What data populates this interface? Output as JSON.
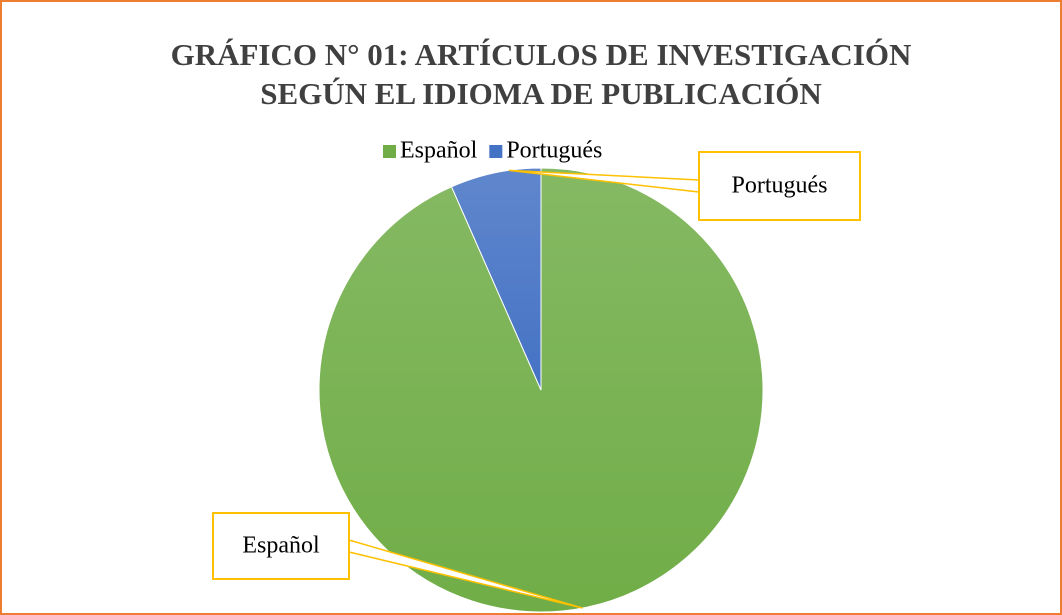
{
  "chart_data": {
    "type": "pie",
    "title": [
      "GRÁFICO N° 01: ARTÍCULOS DE INVESTIGACIÓN",
      "SEGÚN EL IDIOMA DE PUBLICACIÓN"
    ],
    "categories": [
      "Español",
      "Portugués"
    ],
    "values": [
      93.4,
      6.6
    ],
    "colors": [
      "#70ad47",
      "#4472c4"
    ],
    "legend": "top"
  }
}
